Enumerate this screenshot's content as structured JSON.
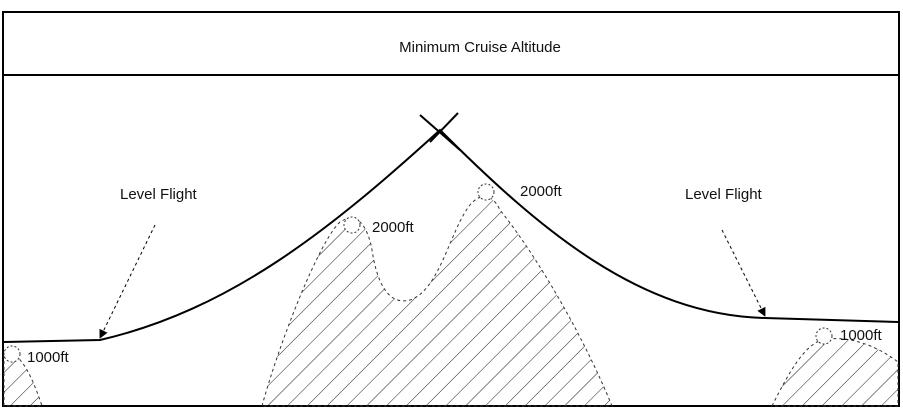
{
  "header": {
    "title": "Minimum Cruise Altitude"
  },
  "labels": {
    "level_flight_left": "Level Flight",
    "level_flight_right": "Level Flight",
    "peak_left": "2000ft",
    "peak_right": "2000ft",
    "ground_left": "1000ft",
    "ground_right": "1000ft"
  }
}
